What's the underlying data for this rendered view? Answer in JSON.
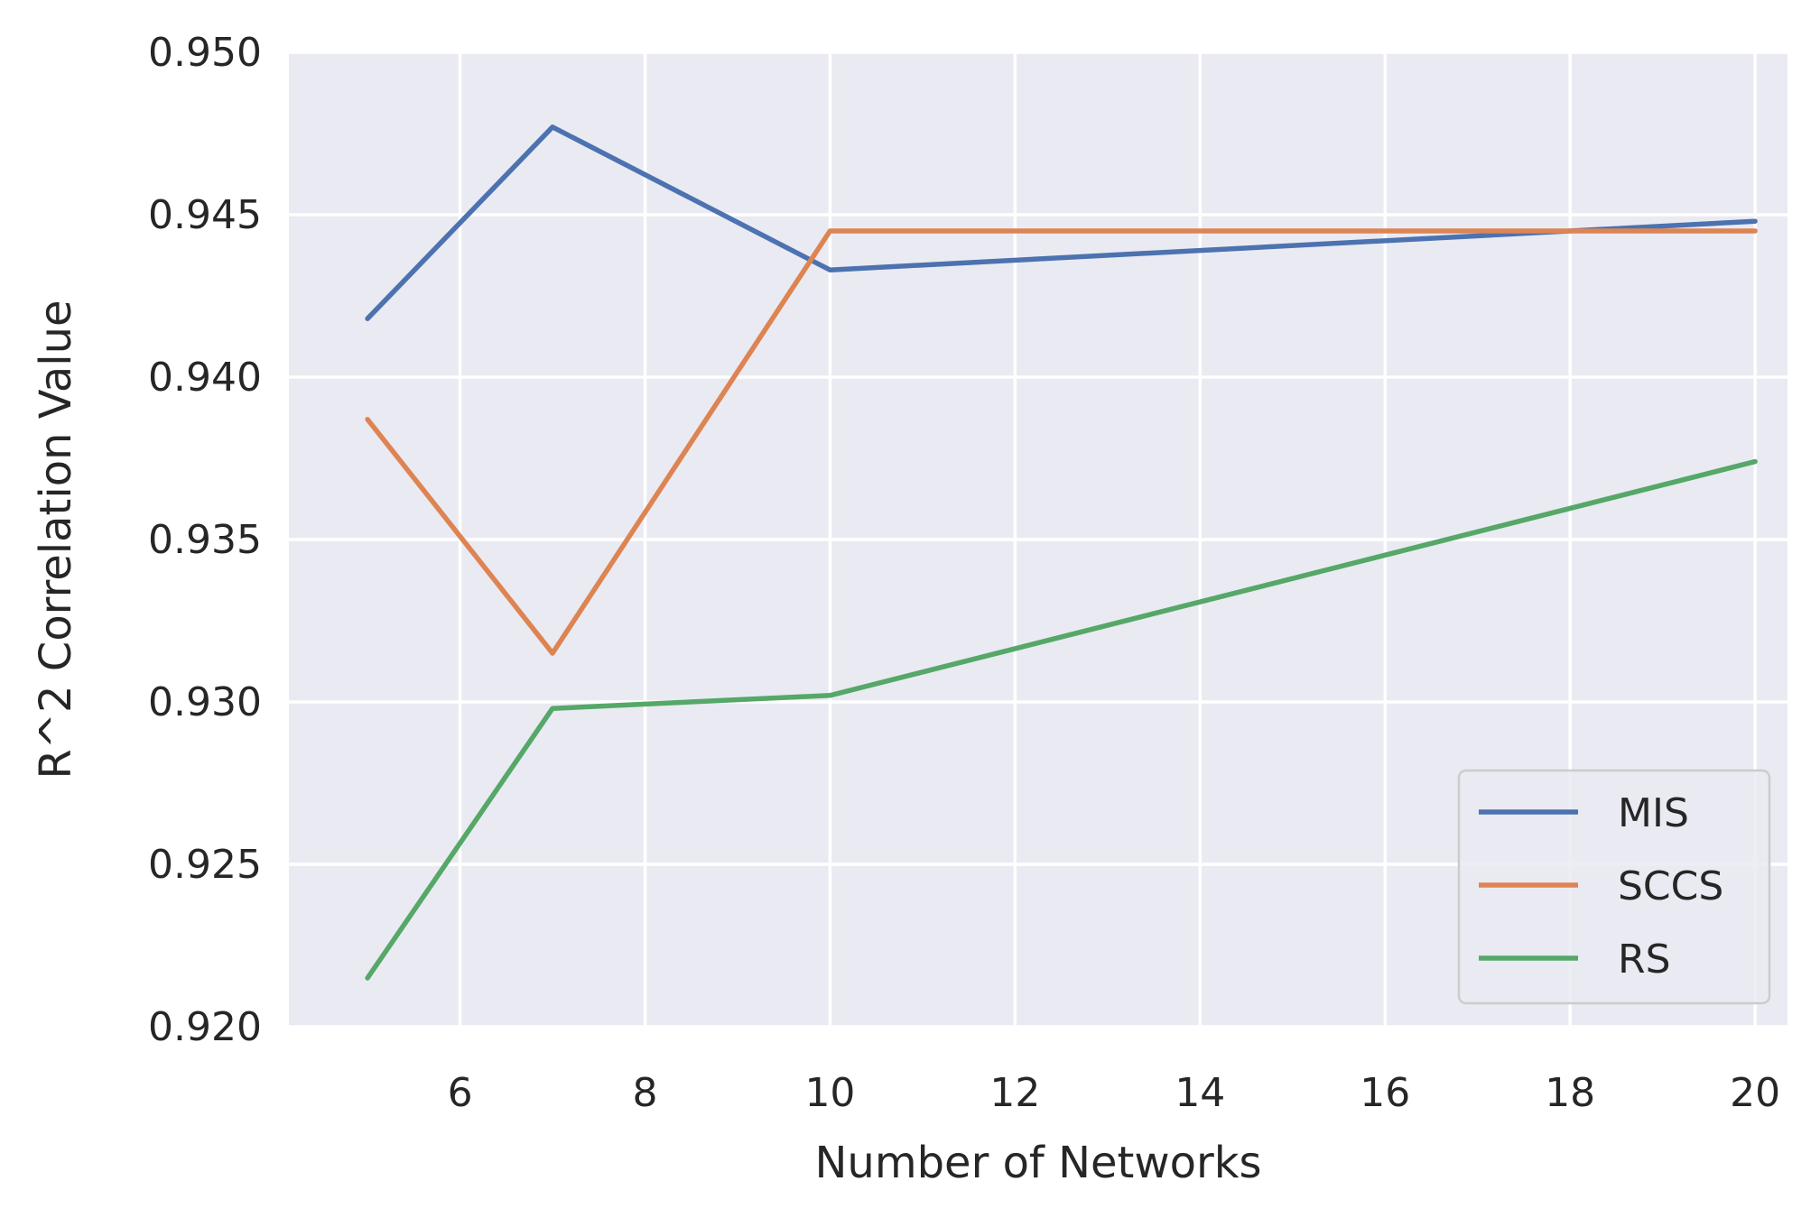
{
  "chart_data": {
    "type": "line",
    "title": "",
    "xlabel": "Number of Networks",
    "ylabel": "R^2 Correlation Value",
    "x": [
      5,
      7,
      10,
      20
    ],
    "xticks": [
      6,
      8,
      10,
      12,
      14,
      16,
      18,
      20
    ],
    "xtick_labels": [
      "6",
      "8",
      "10",
      "12",
      "14",
      "16",
      "18",
      "20"
    ],
    "yticks": [
      0.92,
      0.925,
      0.93,
      0.935,
      0.94,
      0.945,
      0.95
    ],
    "ytick_labels": [
      "0.920",
      "0.925",
      "0.930",
      "0.935",
      "0.940",
      "0.945",
      "0.950"
    ],
    "xlim": [
      4.15,
      20.35
    ],
    "ylim": [
      0.92,
      0.95
    ],
    "grid": true,
    "legend_position": "lower right",
    "series": [
      {
        "name": "MIS",
        "color": "#4c72b0",
        "values": [
          0.9418,
          0.9477,
          0.9433,
          0.9448
        ]
      },
      {
        "name": "SCCS",
        "color": "#dd8452",
        "values": [
          0.9387,
          0.9315,
          0.9445,
          0.9445
        ]
      },
      {
        "name": "RS",
        "color": "#55a868",
        "values": [
          0.9215,
          0.9298,
          0.9302,
          0.9374
        ]
      }
    ],
    "plot_background": "#eaeaf2",
    "grid_color": "#ffffff"
  }
}
